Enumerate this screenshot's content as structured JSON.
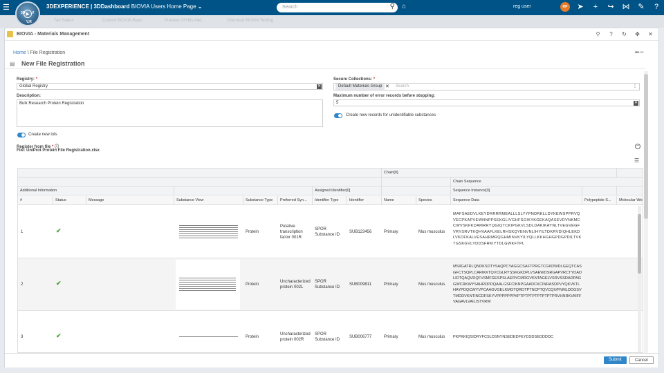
{
  "topbar": {
    "brand_bold": "3DEXPERIENCE | 3DDashboard",
    "brand_light": "BIOVIA Users Home Page",
    "search_placeholder": "Search",
    "user_name": "reg user",
    "avatar_initials": "RP",
    "compass_labels": [
      "3D",
      "V",
      "I",
      "V,R"
    ]
  },
  "tabs": [
    "Tab Status",
    "Consult BIOVIA Repo",
    "Preview Of Hits Add...",
    "Chemical BIOVIA Testing"
  ],
  "panel": {
    "title": "BIOVIA - Materials Management"
  },
  "breadcrumb": {
    "home": "Home",
    "separator": "\\",
    "current": "File Registration"
  },
  "page_title": "New File Registration",
  "form": {
    "registry_label": "Registry:",
    "registry_value": "Global Registry",
    "description_label": "Description:",
    "description_value": "Bulk Research Protein Registration",
    "secure_label": "Secure Collections:",
    "secure_chip": "Default Materials Group",
    "secure_placeholder": "Search",
    "max_errors_label": "Maximum number of error records before stopping:",
    "max_errors_value": "5",
    "toggle_unidentifiable": "Create new records for unidentifiable substances",
    "toggle_lots": "Create new lots",
    "register_label": "Register from file",
    "file_name": "File: UniProt Protein File Registration.xlsx",
    "required_mark": "*"
  },
  "table": {
    "group_headers": {
      "chain": "Chain[0]",
      "chain_sequence": "Chain Sequence",
      "additional_info": "Additional Information",
      "assigned_identifier": "Assigned Identifier[0]",
      "sequence_instance": "Sequence Instance[0]"
    },
    "columns": [
      "#",
      "Status",
      "Message",
      "Substance View",
      "Substance Type",
      "Preferred Syn...",
      "Identifier Type",
      "Identifier",
      "Name",
      "Species",
      "Sequence Data",
      "Polypeptide S...",
      "Molecular Wei..."
    ],
    "rows": [
      {
        "num": "1",
        "status": "✔",
        "message": "",
        "type": "Protein",
        "synonym": "Putative transcription factor 001R",
        "id_type": "SPOR Substance ID",
        "identifier": "SUB123456",
        "name": "Primary",
        "species": "Mus musculus",
        "sequence": "MAFSAEDVLKEYDRRRRMEALLLSLYYPNDRKLLDYKEWSPPRVQVECPKAPVEWNNPPSEKGLIVGHFSGIKYKGEKAQASEVDVNKMCCWVSKFKDAMRRYQGIQTCKIPGKVLSDLDAKIKAYNLTVEGVEGFVRYSRVTKQHVAAFLKELRHSKQYENVNLIHYILTDKRVDIQHLEKDLVKDFKALVESAHRMRQGHMINVKYILYQLLKKHGHGPDGPDILTVKTGSKGVLYDDSFRKIYTDLGWKFTPL"
      },
      {
        "num": "2",
        "status": "✔",
        "message": "",
        "type": "Protein",
        "synonym": "Uncharacterized protein 002L",
        "id_type": "SPOR Substance ID",
        "identifier": "SUB009811",
        "name": "Primary",
        "species": "Mus musculus",
        "sequence": "MSIIGATRLQNDKSDTYSAQPCYAGGCSAFTPRGTCGKDWDLGEQTCASGFCTSQPLCARIKKTQVCGLRYSSKGKDPLVSAEWDSRGAPVRCTYDADLIDTQAQVDQFVSMFGESPSLAERYCMRGVKNTAGELVSRVSSDADPAGGWCRKWYSAHRDPDQAALGSFCIKNPGAADCKCINRASDPVYQKVKTLHAYPDQCWYVPCAAGVGELKMGTQRDTPTNCPTQVCQIVFNMLDDGSVTMDDVKNTINCDFSKYVPPPPPPPKPTPTPTPTPTPTPTPRVHNRKVMFFVAGAVLVAILISTVRW"
      },
      {
        "num": "3",
        "status": "✔",
        "message": "",
        "type": "Protein",
        "synonym": "Uncharacterized protein 002R",
        "id_type": "SPOR Substance ID",
        "identifier": "SUB006777",
        "name": "Primary",
        "species": "Mus musculus",
        "sequence": "PKPKKIQSIDRYFCSLDSNYNSEDEDFEYDSDSEDDDDC"
      }
    ]
  },
  "footer": {
    "submit": "Submit",
    "cancel": "Cancel"
  },
  "colors": {
    "topbar": "#005386",
    "primary": "#2f86c8",
    "success": "#4ba23c"
  }
}
